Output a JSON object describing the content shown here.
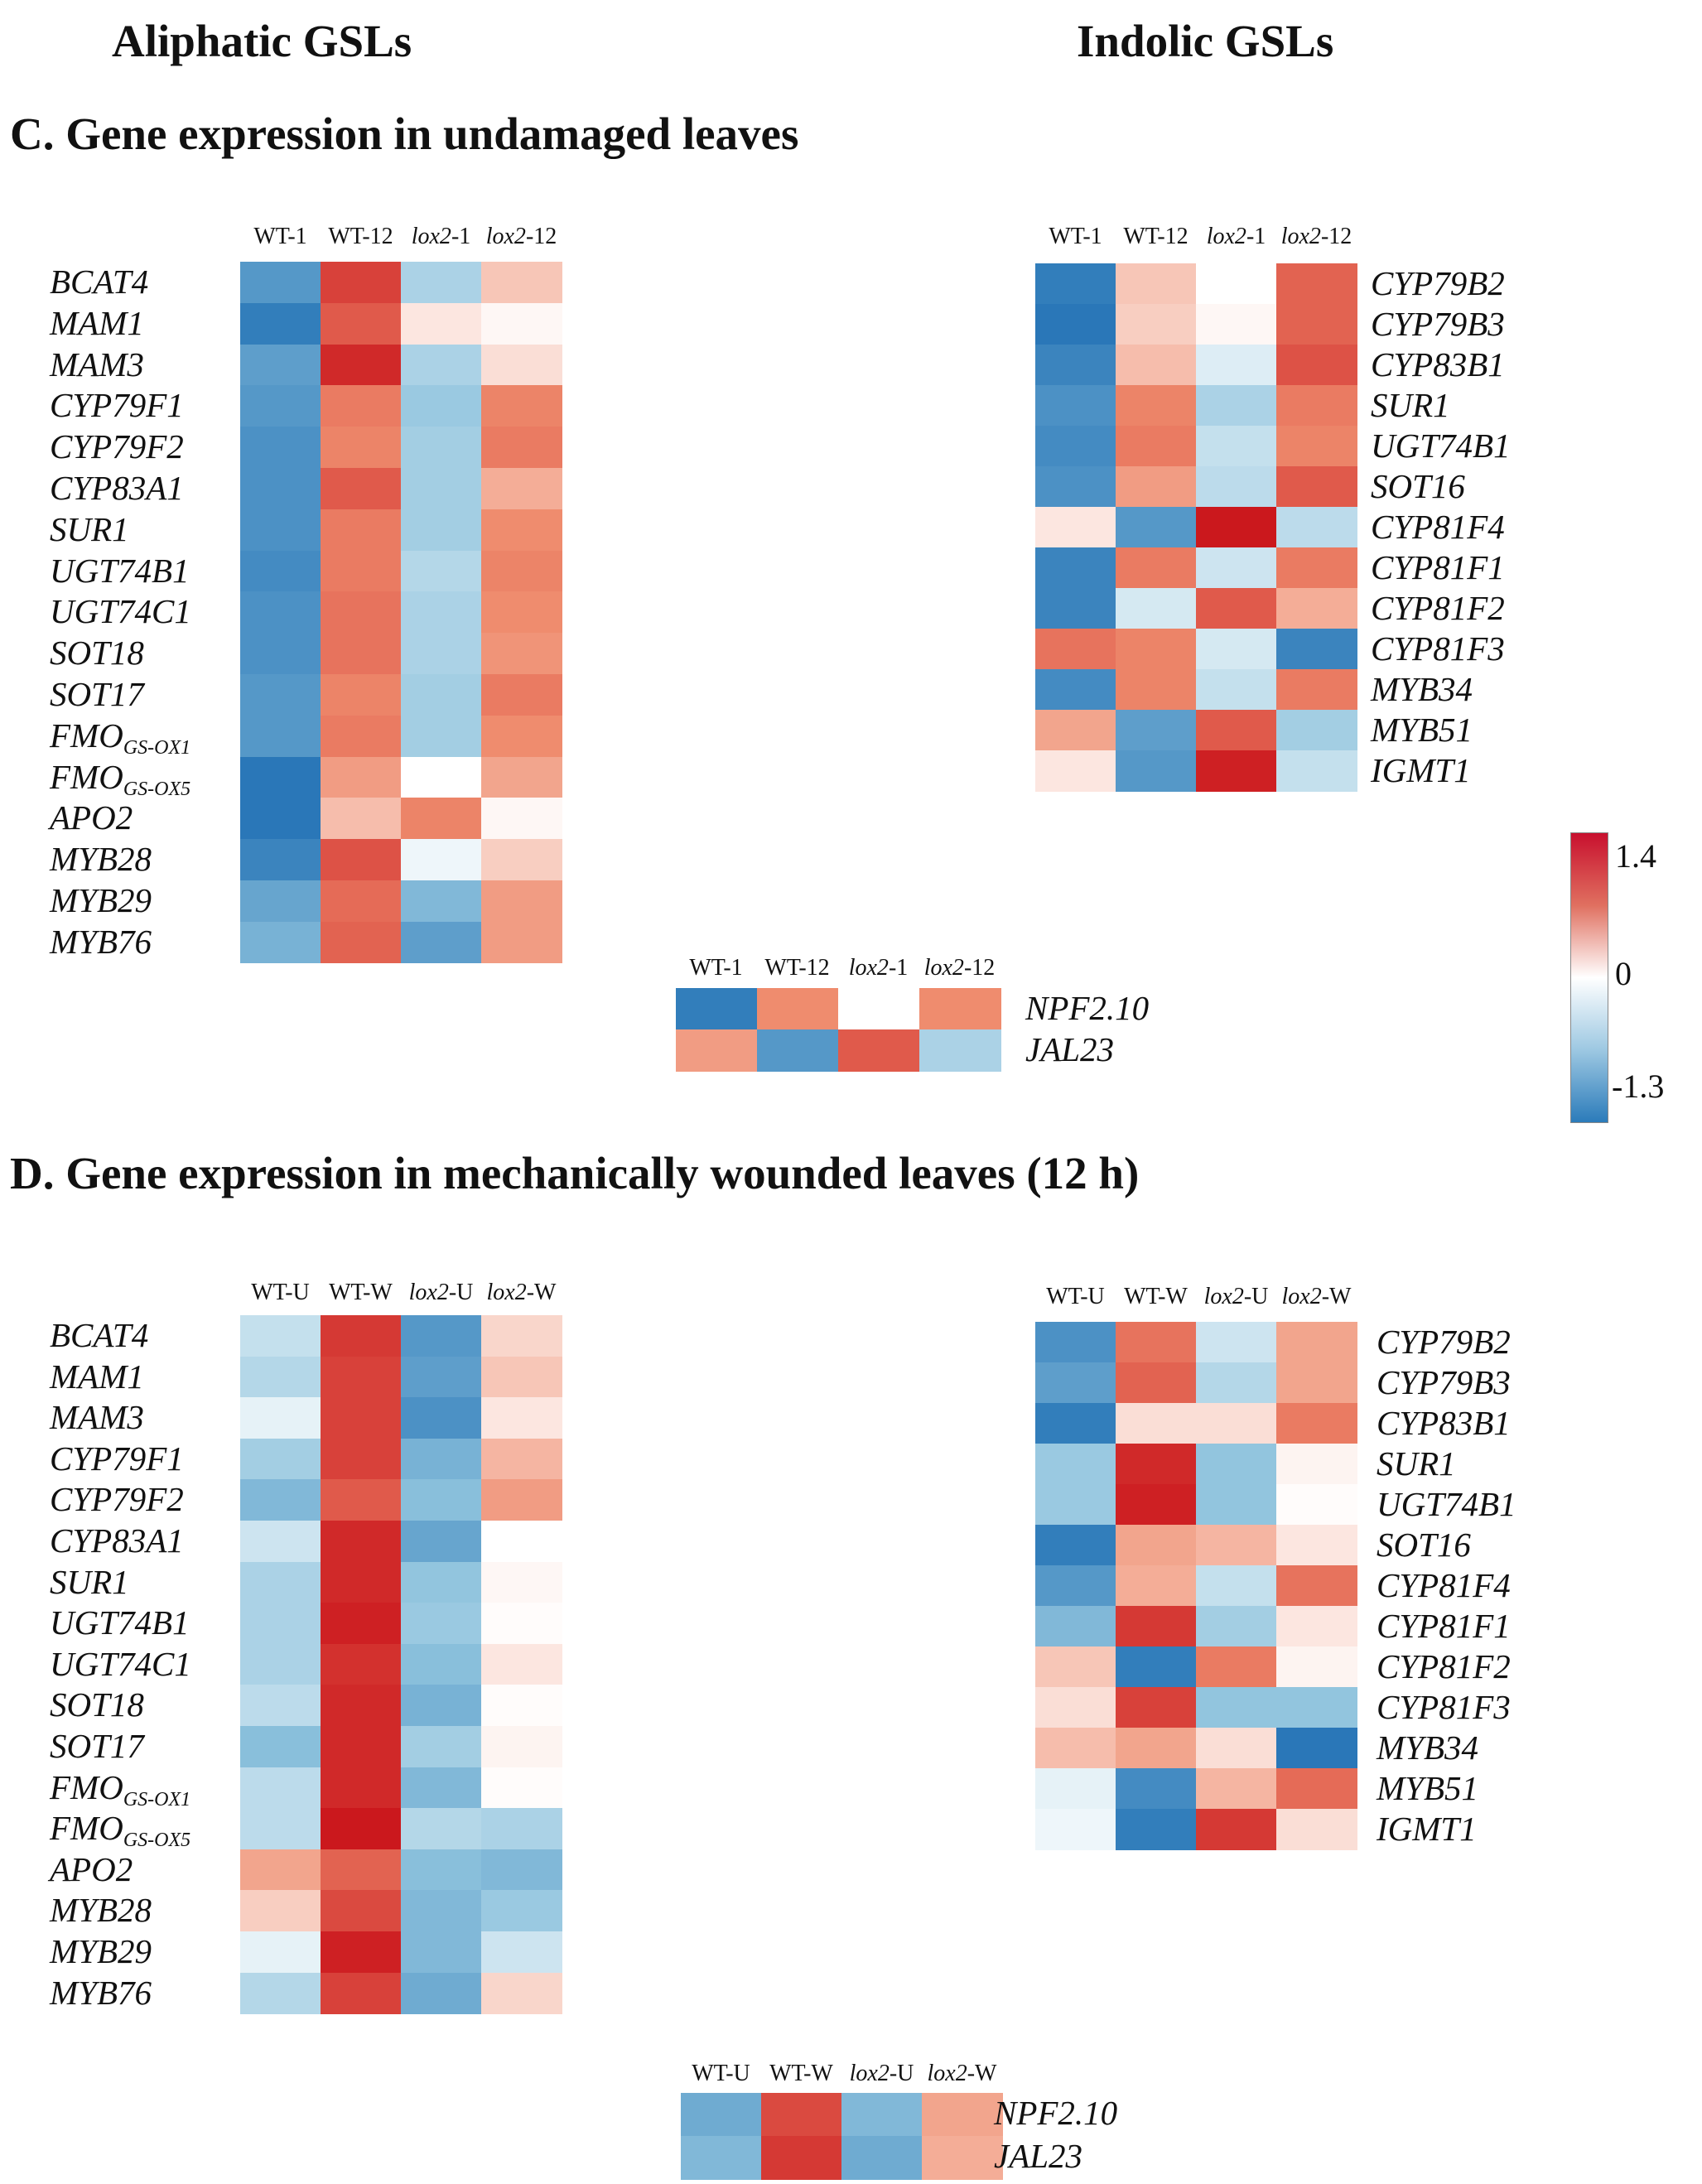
{
  "headers": {
    "aliphatic": "Aliphatic GSLs",
    "indolic": "Indolic GSLs",
    "section_c": "C. Gene expression in undamaged leaves",
    "section_d": "D. Gene expression in mechanically wounded leaves (12 h)"
  },
  "legend": {
    "max": "1.4",
    "mid": "0",
    "min": "-1.3",
    "range": [
      -1.3,
      1.4
    ]
  },
  "chart_data": [
    {
      "type": "heatmap",
      "id": "c-aliphatic",
      "columns": [
        {
          "prefix": "WT",
          "suffix": "-1"
        },
        {
          "prefix": "WT",
          "suffix": "-12"
        },
        {
          "prefix": "lox2",
          "suffix": "-1"
        },
        {
          "prefix": "lox2",
          "suffix": "-12"
        }
      ],
      "rows": [
        {
          "gene": "BCAT4",
          "sub": "",
          "values": [
            -1.0,
            1.15,
            -0.5,
            0.35
          ]
        },
        {
          "gene": "MAM1",
          "sub": "",
          "values": [
            -1.2,
            1.0,
            0.15,
            0.05
          ]
        },
        {
          "gene": "MAM3",
          "sub": "",
          "values": [
            -0.95,
            1.3,
            -0.5,
            0.2
          ]
        },
        {
          "gene": "CYP79F1",
          "sub": "",
          "values": [
            -1.0,
            0.8,
            -0.6,
            0.75
          ]
        },
        {
          "gene": "CYP79F2",
          "sub": "",
          "values": [
            -1.05,
            0.75,
            -0.55,
            0.8
          ]
        },
        {
          "gene": "CYP83A1",
          "sub": "",
          "values": [
            -1.05,
            1.0,
            -0.55,
            0.5
          ]
        },
        {
          "gene": "SUR1",
          "sub": "",
          "values": [
            -1.05,
            0.8,
            -0.55,
            0.7
          ]
        },
        {
          "gene": "UGT74B1",
          "sub": "",
          "values": [
            -1.1,
            0.8,
            -0.45,
            0.75
          ]
        },
        {
          "gene": "UGT74C1",
          "sub": "",
          "values": [
            -1.05,
            0.85,
            -0.5,
            0.7
          ]
        },
        {
          "gene": "SOT18",
          "sub": "",
          "values": [
            -1.05,
            0.85,
            -0.5,
            0.65
          ]
        },
        {
          "gene": "SOT17",
          "sub": "",
          "values": [
            -1.0,
            0.75,
            -0.55,
            0.8
          ]
        },
        {
          "gene": "FMO",
          "sub": "GS-OX1",
          "values": [
            -1.0,
            0.8,
            -0.55,
            0.7
          ]
        },
        {
          "gene": "FMO",
          "sub": "GS-OX5",
          "values": [
            -1.25,
            0.6,
            0.0,
            0.55
          ]
        },
        {
          "gene": "APO2",
          "sub": "",
          "values": [
            -1.25,
            0.4,
            0.75,
            0.05
          ]
        },
        {
          "gene": "MYB28",
          "sub": "",
          "values": [
            -1.15,
            1.05,
            -0.1,
            0.3
          ]
        },
        {
          "gene": "MYB29",
          "sub": "",
          "values": [
            -0.9,
            0.9,
            -0.75,
            0.6
          ]
        },
        {
          "gene": "MYB76",
          "sub": "",
          "values": [
            -0.8,
            0.95,
            -0.95,
            0.6
          ]
        }
      ]
    },
    {
      "type": "heatmap",
      "id": "c-indolic",
      "columns": [
        {
          "prefix": "WT",
          "suffix": "-1"
        },
        {
          "prefix": "WT",
          "suffix": "-12"
        },
        {
          "prefix": "lox2",
          "suffix": "-1"
        },
        {
          "prefix": "lox2",
          "suffix": "-12"
        }
      ],
      "rows": [
        {
          "gene": "CYP79B2",
          "sub": "",
          "values": [
            -1.2,
            0.35,
            0.0,
            0.95
          ]
        },
        {
          "gene": "CYP79B3",
          "sub": "",
          "values": [
            -1.25,
            0.3,
            0.05,
            0.95
          ]
        },
        {
          "gene": "CYP83B1",
          "sub": "",
          "values": [
            -1.15,
            0.4,
            -0.2,
            1.05
          ]
        },
        {
          "gene": "SUR1",
          "sub": "",
          "values": [
            -1.05,
            0.75,
            -0.5,
            0.8
          ]
        },
        {
          "gene": "UGT74B1",
          "sub": "",
          "values": [
            -1.1,
            0.8,
            -0.35,
            0.75
          ]
        },
        {
          "gene": "SOT16",
          "sub": "",
          "values": [
            -1.05,
            0.6,
            -0.4,
            1.0
          ]
        },
        {
          "gene": "CYP81F4",
          "sub": "",
          "values": [
            0.15,
            -1.0,
            1.4,
            -0.4
          ]
        },
        {
          "gene": "CYP81F1",
          "sub": "",
          "values": [
            -1.15,
            0.8,
            -0.3,
            0.8
          ]
        },
        {
          "gene": "CYP81F2",
          "sub": "",
          "values": [
            -1.15,
            -0.25,
            1.0,
            0.5
          ]
        },
        {
          "gene": "CYP81F3",
          "sub": "",
          "values": [
            0.85,
            0.75,
            -0.25,
            -1.15
          ]
        },
        {
          "gene": "MYB34",
          "sub": "",
          "values": [
            -1.1,
            0.75,
            -0.35,
            0.8
          ]
        },
        {
          "gene": "MYB51",
          "sub": "",
          "values": [
            0.55,
            -0.95,
            1.0,
            -0.55
          ]
        },
        {
          "gene": "IGMT1",
          "sub": "",
          "values": [
            0.15,
            -1.0,
            1.35,
            -0.35
          ]
        }
      ]
    },
    {
      "type": "heatmap",
      "id": "c-npf",
      "columns": [
        {
          "prefix": "WT",
          "suffix": "-1"
        },
        {
          "prefix": "WT",
          "suffix": "-12"
        },
        {
          "prefix": "lox2",
          "suffix": "-1"
        },
        {
          "prefix": "lox2",
          "suffix": "-12"
        }
      ],
      "rows": [
        {
          "gene": "NPF2.10",
          "sub": "",
          "values": [
            -1.2,
            0.7,
            0.0,
            0.7
          ]
        },
        {
          "gene": "JAL23",
          "sub": "",
          "values": [
            0.6,
            -1.0,
            1.0,
            -0.5
          ]
        }
      ]
    },
    {
      "type": "heatmap",
      "id": "d-aliphatic",
      "columns": [
        {
          "prefix": "WT",
          "suffix": "-U"
        },
        {
          "prefix": "WT",
          "suffix": "-W"
        },
        {
          "prefix": "lox2",
          "suffix": "-U"
        },
        {
          "prefix": "lox2",
          "suffix": "-W"
        }
      ],
      "rows": [
        {
          "gene": "BCAT4",
          "sub": "",
          "values": [
            -0.35,
            1.2,
            -1.0,
            0.25
          ]
        },
        {
          "gene": "MAM1",
          "sub": "",
          "values": [
            -0.45,
            1.15,
            -0.95,
            0.35
          ]
        },
        {
          "gene": "MAM3",
          "sub": "",
          "values": [
            -0.15,
            1.15,
            -1.05,
            0.15
          ]
        },
        {
          "gene": "CYP79F1",
          "sub": "",
          "values": [
            -0.55,
            1.15,
            -0.8,
            0.45
          ]
        },
        {
          "gene": "CYP79F2",
          "sub": "",
          "values": [
            -0.75,
            1.0,
            -0.7,
            0.6
          ]
        },
        {
          "gene": "CYP83A1",
          "sub": "",
          "values": [
            -0.3,
            1.3,
            -0.9,
            0.0
          ]
        },
        {
          "gene": "SUR1",
          "sub": "",
          "values": [
            -0.5,
            1.3,
            -0.65,
            0.05
          ]
        },
        {
          "gene": "UGT74B1",
          "sub": "",
          "values": [
            -0.5,
            1.35,
            -0.6,
            0.02
          ]
        },
        {
          "gene": "UGT74C1",
          "sub": "",
          "values": [
            -0.5,
            1.25,
            -0.7,
            0.15
          ]
        },
        {
          "gene": "SOT18",
          "sub": "",
          "values": [
            -0.4,
            1.3,
            -0.8,
            0.02
          ]
        },
        {
          "gene": "SOT17",
          "sub": "",
          "values": [
            -0.7,
            1.3,
            -0.55,
            0.07
          ]
        },
        {
          "gene": "FMO",
          "sub": "GS-OX1",
          "values": [
            -0.4,
            1.3,
            -0.75,
            0.02
          ]
        },
        {
          "gene": "FMO",
          "sub": "GS-OX5",
          "values": [
            -0.4,
            1.4,
            -0.45,
            -0.5
          ]
        },
        {
          "gene": "APO2",
          "sub": "",
          "values": [
            0.55,
            0.95,
            -0.7,
            -0.75
          ]
        },
        {
          "gene": "MYB28",
          "sub": "",
          "values": [
            0.3,
            1.1,
            -0.75,
            -0.6
          ]
        },
        {
          "gene": "MYB29",
          "sub": "",
          "values": [
            -0.15,
            1.35,
            -0.75,
            -0.3
          ]
        },
        {
          "gene": "MYB76",
          "sub": "",
          "values": [
            -0.45,
            1.15,
            -0.85,
            0.25
          ]
        }
      ]
    },
    {
      "type": "heatmap",
      "id": "d-indolic",
      "columns": [
        {
          "prefix": "WT",
          "suffix": "-U"
        },
        {
          "prefix": "WT",
          "suffix": "-W"
        },
        {
          "prefix": "lox2",
          "suffix": "-U"
        },
        {
          "prefix": "lox2",
          "suffix": "-W"
        }
      ],
      "rows": [
        {
          "gene": "CYP79B2",
          "sub": "",
          "values": [
            -1.05,
            0.85,
            -0.3,
            0.55
          ]
        },
        {
          "gene": "CYP79B3",
          "sub": "",
          "values": [
            -0.95,
            0.95,
            -0.45,
            0.55
          ]
        },
        {
          "gene": "CYP83B1",
          "sub": "",
          "values": [
            -1.2,
            0.2,
            0.2,
            0.8
          ]
        },
        {
          "gene": "SUR1",
          "sub": "",
          "values": [
            -0.6,
            1.3,
            -0.65,
            0.07
          ]
        },
        {
          "gene": "UGT74B1",
          "sub": "",
          "values": [
            -0.6,
            1.35,
            -0.65,
            0.02
          ]
        },
        {
          "gene": "SOT16",
          "sub": "",
          "values": [
            -1.2,
            0.55,
            0.45,
            0.15
          ]
        },
        {
          "gene": "CYP81F4",
          "sub": "",
          "values": [
            -1.0,
            0.5,
            -0.35,
            0.85
          ]
        },
        {
          "gene": "CYP81F1",
          "sub": "",
          "values": [
            -0.75,
            1.2,
            -0.55,
            0.15
          ]
        },
        {
          "gene": "CYP81F2",
          "sub": "",
          "values": [
            0.35,
            -1.2,
            0.8,
            0.07
          ]
        },
        {
          "gene": "CYP81F3",
          "sub": "",
          "values": [
            0.2,
            1.15,
            -0.65,
            -0.65
          ]
        },
        {
          "gene": "MYB34",
          "sub": "",
          "values": [
            0.4,
            0.55,
            0.2,
            -1.25
          ]
        },
        {
          "gene": "MYB51",
          "sub": "",
          "values": [
            -0.15,
            -1.1,
            0.45,
            0.9
          ]
        },
        {
          "gene": "IGMT1",
          "sub": "",
          "values": [
            -0.1,
            -1.2,
            1.2,
            0.2
          ]
        }
      ]
    },
    {
      "type": "heatmap",
      "id": "d-npf",
      "columns": [
        {
          "prefix": "WT",
          "suffix": "-U"
        },
        {
          "prefix": "WT",
          "suffix": "-W"
        },
        {
          "prefix": "lox2",
          "suffix": "-U"
        },
        {
          "prefix": "lox2",
          "suffix": "-W"
        }
      ],
      "rows": [
        {
          "gene": "NPF2.10",
          "sub": "",
          "values": [
            -0.85,
            1.1,
            -0.75,
            0.55
          ]
        },
        {
          "gene": "JAL23",
          "sub": "",
          "values": [
            -0.75,
            1.2,
            -0.85,
            0.5
          ]
        }
      ]
    }
  ]
}
